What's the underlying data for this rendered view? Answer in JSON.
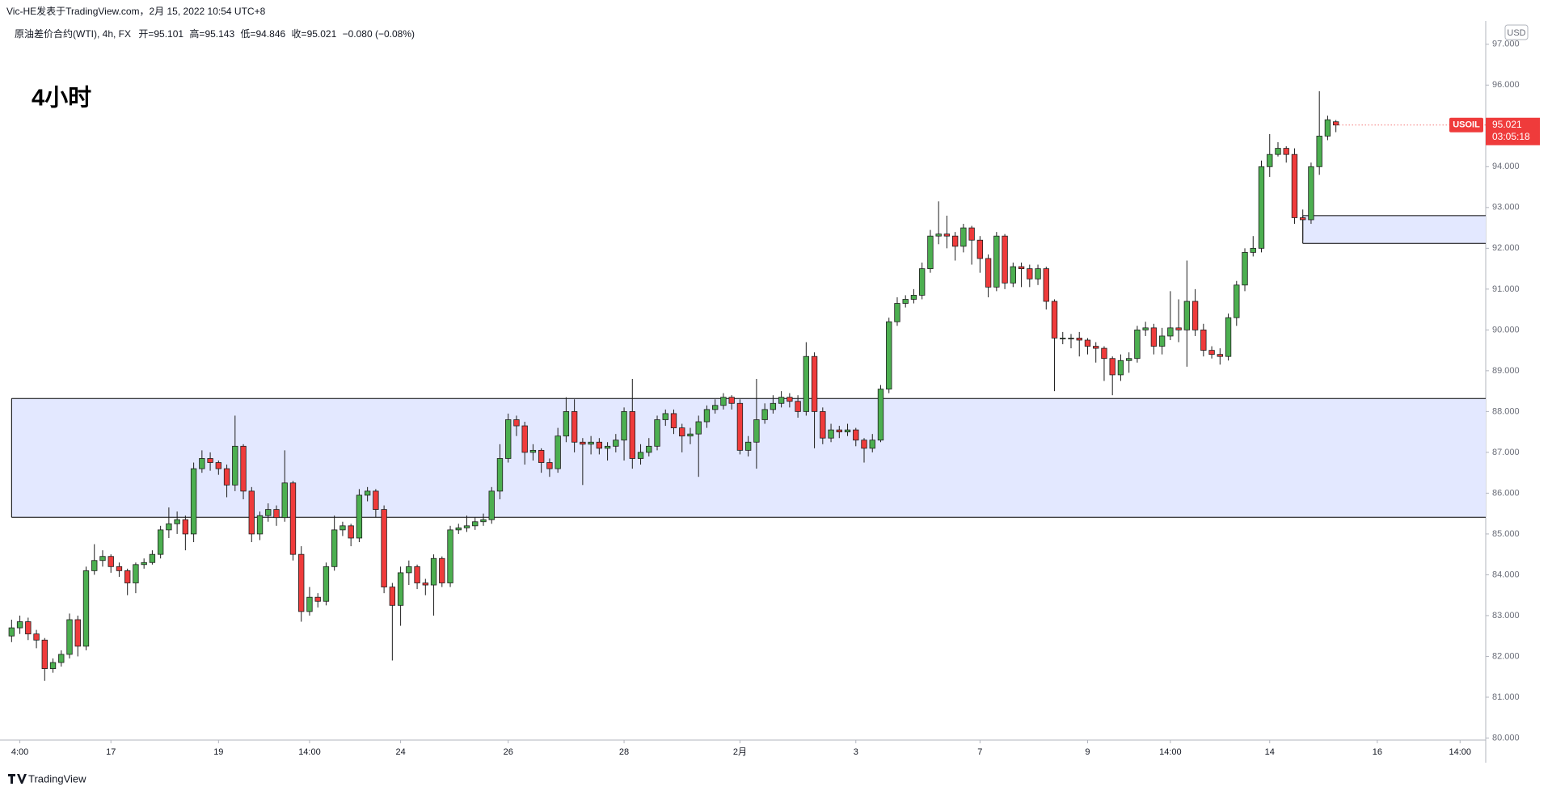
{
  "header": {
    "author_line": "Vic-HE发表于TradingView.com，2月 15, 2022 10:54 UTC+8",
    "footer": "TradingView"
  },
  "chart_data": {
    "type": "candlestick",
    "title": "4小时",
    "legend": {
      "symbol": "原油差价合约(WTI), 4h, FX",
      "open_label": "开=",
      "high_label": "高=",
      "low_label": "低=",
      "close_label": "收=",
      "change": "−0.080 (−0.08%)"
    },
    "currency": "USD",
    "last_price_label": {
      "symbol": "USOIL",
      "countdown": "03:05:18"
    },
    "up_color": "#4caf50",
    "down_color": "#ef3b3b",
    "outline_color": "#1e1e1e",
    "open": [
      82.5,
      82.7,
      82.85,
      82.55,
      82.4,
      81.7,
      81.85,
      82.05,
      82.9,
      82.25,
      84.1,
      84.35,
      84.45,
      84.2,
      84.1,
      83.8,
      84.25,
      84.3,
      84.5,
      85.1,
      85.25,
      85.35,
      85.0,
      86.6,
      86.85,
      86.75,
      86.6,
      86.2,
      87.15,
      86.05,
      85.0,
      85.45,
      85.6,
      85.4,
      86.25,
      84.5,
      83.1,
      83.45,
      83.35,
      84.2,
      85.1,
      85.2,
      84.9,
      85.95,
      86.05,
      85.6,
      83.7,
      83.25,
      84.05,
      84.2,
      83.8,
      83.75,
      84.4,
      83.8,
      85.1,
      85.15,
      85.2,
      85.3,
      85.35,
      86.05,
      86.85,
      87.8,
      87.65,
      87.0,
      87.05,
      86.75,
      86.6,
      87.4,
      88.0,
      87.25,
      87.2,
      87.25,
      87.1,
      87.15,
      87.3,
      88.0,
      86.85,
      87.0,
      87.15,
      87.8,
      87.95,
      87.6,
      87.4,
      87.45,
      87.75,
      88.05,
      88.15,
      88.35,
      88.2,
      87.05,
      87.25,
      87.8,
      88.05,
      88.2,
      88.35,
      88.25,
      88.0,
      89.35,
      88.0,
      87.35,
      87.55,
      87.5,
      87.55,
      87.3,
      87.1,
      87.3,
      88.55,
      90.2,
      90.65,
      90.75,
      90.85,
      91.5,
      92.3,
      92.35,
      92.3,
      92.05,
      92.5,
      92.2,
      91.75,
      91.05,
      92.3,
      91.15,
      91.55,
      91.5,
      91.25,
      91.5,
      90.7,
      89.8,
      89.8,
      89.8,
      89.75,
      89.6,
      89.55,
      89.3,
      88.9,
      89.25,
      89.3,
      90.0,
      90.05,
      89.6,
      89.85,
      90.05,
      90.0,
      90.7,
      90.0,
      89.5,
      89.4,
      89.35,
      90.3,
      91.1,
      91.9,
      92.0,
      94.0,
      94.3,
      94.45,
      94.3,
      92.75,
      92.7,
      94.0,
      94.75,
      95.101
    ],
    "high": [
      82.9,
      83.0,
      82.95,
      82.65,
      82.45,
      81.95,
      82.15,
      83.05,
      83.0,
      84.2,
      84.75,
      84.6,
      84.5,
      84.3,
      84.15,
      84.3,
      84.4,
      84.6,
      85.2,
      85.65,
      85.55,
      85.45,
      86.75,
      87.05,
      87.0,
      86.8,
      86.7,
      87.9,
      87.2,
      86.15,
      85.55,
      85.75,
      85.7,
      87.05,
      86.3,
      84.7,
      83.7,
      83.55,
      84.3,
      85.45,
      85.3,
      85.25,
      86.1,
      86.15,
      86.1,
      85.7,
      83.8,
      84.2,
      84.35,
      84.25,
      83.9,
      84.5,
      84.45,
      85.2,
      85.25,
      85.45,
      85.4,
      85.5,
      86.15,
      87.2,
      87.95,
      87.9,
      87.75,
      87.2,
      87.1,
      86.85,
      87.6,
      88.35,
      88.3,
      87.35,
      87.4,
      87.35,
      87.25,
      87.45,
      88.1,
      88.8,
      87.2,
      87.35,
      87.9,
      88.05,
      88.05,
      87.7,
      87.6,
      87.9,
      88.15,
      88.3,
      88.45,
      88.4,
      88.3,
      87.4,
      88.8,
      88.2,
      88.4,
      88.5,
      88.45,
      88.4,
      89.7,
      89.45,
      88.1,
      87.7,
      87.65,
      87.7,
      87.6,
      87.35,
      87.45,
      88.65,
      90.3,
      90.8,
      90.85,
      91.0,
      91.65,
      92.45,
      93.15,
      92.8,
      92.4,
      92.6,
      92.55,
      92.3,
      91.85,
      92.4,
      92.35,
      91.65,
      91.65,
      91.6,
      91.6,
      91.55,
      90.75,
      89.95,
      89.9,
      89.95,
      89.8,
      89.7,
      89.6,
      89.35,
      89.4,
      89.45,
      90.1,
      90.2,
      90.15,
      90.05,
      90.95,
      90.75,
      91.7,
      91.0,
      90.15,
      89.6,
      89.55,
      90.4,
      91.2,
      92.0,
      92.3,
      94.15,
      94.8,
      94.6,
      94.5,
      94.45,
      92.95,
      94.1,
      95.85,
      95.25,
      95.143
    ],
    "low": [
      82.35,
      82.55,
      82.4,
      82.2,
      81.4,
      81.6,
      81.75,
      81.95,
      82.0,
      82.15,
      84.0,
      84.2,
      84.05,
      83.95,
      83.5,
      83.55,
      84.15,
      84.25,
      84.4,
      84.9,
      85.0,
      84.6,
      84.8,
      86.5,
      86.55,
      86.45,
      85.9,
      86.05,
      85.85,
      84.8,
      84.85,
      85.3,
      85.2,
      85.3,
      84.35,
      82.85,
      83.0,
      83.2,
      83.25,
      84.1,
      84.95,
      84.7,
      84.8,
      85.8,
      85.4,
      83.55,
      81.9,
      82.75,
      83.75,
      83.65,
      83.5,
      83.0,
      83.7,
      83.7,
      85.0,
      85.05,
      85.1,
      85.2,
      85.25,
      85.85,
      86.75,
      87.4,
      86.7,
      86.8,
      86.5,
      86.4,
      86.5,
      87.25,
      87.0,
      86.2,
      86.95,
      86.95,
      86.8,
      87.0,
      86.8,
      86.6,
      86.7,
      86.9,
      87.05,
      87.65,
      87.45,
      87.0,
      87.2,
      86.4,
      87.6,
      87.95,
      88.05,
      88.05,
      86.95,
      86.9,
      86.6,
      87.7,
      87.95,
      88.1,
      88.1,
      87.85,
      87.9,
      87.1,
      87.2,
      87.25,
      87.35,
      87.4,
      87.15,
      86.75,
      87.0,
      87.25,
      88.45,
      90.1,
      90.55,
      90.65,
      90.75,
      91.4,
      92.1,
      92.0,
      91.7,
      91.9,
      91.6,
      91.4,
      90.8,
      90.95,
      91.0,
      91.05,
      91.05,
      91.05,
      91.1,
      90.5,
      88.5,
      89.65,
      89.55,
      89.35,
      89.4,
      89.2,
      88.75,
      88.4,
      88.75,
      88.95,
      89.2,
      89.85,
      89.4,
      89.4,
      89.75,
      89.7,
      89.1,
      89.85,
      89.35,
      89.3,
      89.15,
      89.25,
      90.1,
      90.95,
      91.8,
      91.9,
      93.75,
      94.25,
      94.1,
      92.6,
      92.2,
      92.6,
      93.8,
      94.65,
      94.846
    ],
    "close": [
      82.7,
      82.85,
      82.55,
      82.4,
      81.7,
      81.85,
      82.05,
      82.9,
      82.25,
      84.1,
      84.35,
      84.45,
      84.2,
      84.1,
      83.8,
      84.25,
      84.3,
      84.5,
      85.1,
      85.25,
      85.35,
      85.0,
      86.6,
      86.85,
      86.75,
      86.6,
      86.2,
      87.15,
      86.05,
      85.0,
      85.45,
      85.6,
      85.4,
      86.25,
      84.5,
      83.1,
      83.45,
      83.35,
      84.2,
      85.1,
      85.2,
      84.9,
      85.95,
      86.05,
      85.6,
      83.7,
      83.25,
      84.05,
      84.2,
      83.8,
      83.75,
      84.4,
      83.8,
      85.1,
      85.15,
      85.2,
      85.3,
      85.35,
      86.05,
      86.85,
      87.8,
      87.65,
      87.0,
      87.05,
      86.75,
      86.6,
      87.4,
      88.0,
      87.25,
      87.2,
      87.25,
      87.1,
      87.15,
      87.3,
      88.0,
      86.85,
      87.0,
      87.15,
      87.8,
      87.95,
      87.6,
      87.4,
      87.45,
      87.75,
      88.05,
      88.15,
      88.35,
      88.2,
      87.05,
      87.25,
      87.8,
      88.05,
      88.2,
      88.35,
      88.25,
      88.0,
      89.35,
      88.0,
      87.35,
      87.55,
      87.5,
      87.55,
      87.3,
      87.1,
      87.3,
      88.55,
      90.2,
      90.65,
      90.75,
      90.85,
      91.5,
      92.3,
      92.35,
      92.3,
      92.05,
      92.5,
      92.2,
      91.75,
      91.05,
      92.3,
      91.15,
      91.55,
      91.5,
      91.25,
      91.5,
      90.7,
      89.8,
      89.8,
      89.8,
      89.75,
      89.6,
      89.55,
      89.3,
      88.9,
      89.25,
      89.3,
      90.0,
      90.05,
      89.6,
      89.85,
      90.05,
      90.0,
      90.7,
      90.0,
      89.5,
      89.4,
      89.35,
      90.3,
      91.1,
      91.9,
      92.0,
      94.0,
      94.3,
      94.45,
      94.3,
      92.75,
      92.7,
      94.0,
      94.75,
      95.15,
      95.021
    ],
    "zones": [
      {
        "x_start": 0,
        "top": 88.32,
        "bottom": 85.41,
        "color": "#e3e8ff"
      },
      {
        "x_start": 156,
        "top": 92.8,
        "bottom": 92.12,
        "color": "#e3e8ff"
      }
    ],
    "xlim": [
      -1.4,
      178.1
    ],
    "xticks": [
      {
        "value": 1,
        "label": "4:00"
      },
      {
        "value": 12,
        "label": "17"
      },
      {
        "value": 25,
        "label": "19"
      },
      {
        "value": 36,
        "label": "14:00"
      },
      {
        "value": 47,
        "label": "24"
      },
      {
        "value": 60,
        "label": "26"
      },
      {
        "value": 74,
        "label": "28"
      },
      {
        "value": 88,
        "label": "2月"
      },
      {
        "value": 102,
        "label": "3"
      },
      {
        "value": 117,
        "label": "7"
      },
      {
        "value": 130,
        "label": "9"
      },
      {
        "value": 140,
        "label": "14:00"
      },
      {
        "value": 152,
        "label": "14"
      },
      {
        "value": 165,
        "label": "16"
      },
      {
        "value": 175,
        "label": "14:00"
      }
    ],
    "ylim": [
      79.95,
      97.55
    ],
    "yticks": [
      {
        "value": 80,
        "label": "80.000"
      },
      {
        "value": 81,
        "label": "81.000"
      },
      {
        "value": 82,
        "label": "82.000"
      },
      {
        "value": 83,
        "label": "83.000"
      },
      {
        "value": 84,
        "label": "84.000"
      },
      {
        "value": 85,
        "label": "85.000"
      },
      {
        "value": 86,
        "label": "86.000"
      },
      {
        "value": 87,
        "label": "87.000"
      },
      {
        "value": 88,
        "label": "88.000"
      },
      {
        "value": 89,
        "label": "89.000"
      },
      {
        "value": 90,
        "label": "90.000"
      },
      {
        "value": 91,
        "label": "91.000"
      },
      {
        "value": 92,
        "label": "92.000"
      },
      {
        "value": 93,
        "label": "93.000"
      },
      {
        "value": 94,
        "label": "94.000"
      },
      {
        "value": 95,
        "label": "95.000"
      },
      {
        "value": 96,
        "label": "96.000"
      },
      {
        "value": 97,
        "label": "97.000"
      }
    ],
    "grid": false
  }
}
